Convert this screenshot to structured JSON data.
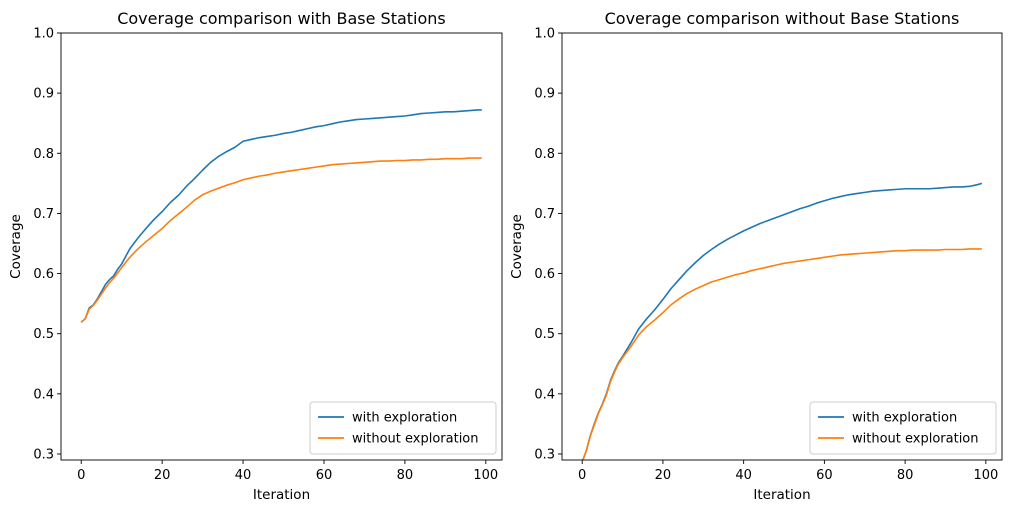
{
  "chart_data": [
    {
      "type": "line",
      "title": "Coverage comparison with Base Stations",
      "xlabel": "Iteration",
      "ylabel": "Coverage",
      "xlim": [
        -5,
        104
      ],
      "ylim": [
        0.29,
        1.0
      ],
      "xticks": [
        0,
        20,
        40,
        60,
        80,
        100
      ],
      "yticks": [
        0.3,
        0.4,
        0.5,
        0.6,
        0.7,
        0.8,
        0.9,
        1.0
      ],
      "grid": false,
      "legend": "lower right",
      "series": [
        {
          "name": "with exploration",
          "color": "#1f77b4",
          "points": [
            [
              0,
              0.519
            ],
            [
              1,
              0.525
            ],
            [
              2,
              0.543
            ],
            [
              3,
              0.548
            ],
            [
              4,
              0.558
            ],
            [
              5,
              0.57
            ],
            [
              6,
              0.582
            ],
            [
              7,
              0.59
            ],
            [
              8,
              0.596
            ],
            [
              9,
              0.607
            ],
            [
              10,
              0.616
            ],
            [
              12,
              0.641
            ],
            [
              14,
              0.659
            ],
            [
              16,
              0.675
            ],
            [
              18,
              0.69
            ],
            [
              20,
              0.703
            ],
            [
              22,
              0.718
            ],
            [
              24,
              0.73
            ],
            [
              26,
              0.745
            ],
            [
              28,
              0.758
            ],
            [
              30,
              0.772
            ],
            [
              32,
              0.785
            ],
            [
              34,
              0.795
            ],
            [
              36,
              0.803
            ],
            [
              38,
              0.81
            ],
            [
              40,
              0.82
            ],
            [
              42,
              0.823
            ],
            [
              44,
              0.826
            ],
            [
              46,
              0.828
            ],
            [
              48,
              0.83
            ],
            [
              50,
              0.833
            ],
            [
              52,
              0.835
            ],
            [
              54,
              0.838
            ],
            [
              56,
              0.841
            ],
            [
              58,
              0.844
            ],
            [
              60,
              0.846
            ],
            [
              62,
              0.849
            ],
            [
              64,
              0.852
            ],
            [
              66,
              0.854
            ],
            [
              68,
              0.856
            ],
            [
              70,
              0.857
            ],
            [
              72,
              0.858
            ],
            [
              74,
              0.859
            ],
            [
              76,
              0.86
            ],
            [
              78,
              0.861
            ],
            [
              80,
              0.862
            ],
            [
              82,
              0.864
            ],
            [
              84,
              0.866
            ],
            [
              86,
              0.867
            ],
            [
              88,
              0.868
            ],
            [
              90,
              0.869
            ],
            [
              92,
              0.869
            ],
            [
              94,
              0.87
            ],
            [
              96,
              0.871
            ],
            [
              98,
              0.872
            ],
            [
              99,
              0.872
            ]
          ]
        },
        {
          "name": "without exploration",
          "color": "#ff7f0e",
          "points": [
            [
              0,
              0.519
            ],
            [
              1,
              0.525
            ],
            [
              2,
              0.541
            ],
            [
              3,
              0.547
            ],
            [
              4,
              0.556
            ],
            [
              5,
              0.566
            ],
            [
              6,
              0.576
            ],
            [
              7,
              0.585
            ],
            [
              8,
              0.592
            ],
            [
              9,
              0.601
            ],
            [
              10,
              0.61
            ],
            [
              12,
              0.627
            ],
            [
              14,
              0.641
            ],
            [
              16,
              0.653
            ],
            [
              18,
              0.664
            ],
            [
              20,
              0.675
            ],
            [
              22,
              0.688
            ],
            [
              24,
              0.699
            ],
            [
              26,
              0.71
            ],
            [
              28,
              0.722
            ],
            [
              30,
              0.731
            ],
            [
              32,
              0.737
            ],
            [
              34,
              0.742
            ],
            [
              36,
              0.747
            ],
            [
              38,
              0.751
            ],
            [
              40,
              0.756
            ],
            [
              42,
              0.759
            ],
            [
              44,
              0.762
            ],
            [
              46,
              0.764
            ],
            [
              48,
              0.767
            ],
            [
              50,
              0.769
            ],
            [
              52,
              0.771
            ],
            [
              54,
              0.773
            ],
            [
              56,
              0.775
            ],
            [
              58,
              0.777
            ],
            [
              60,
              0.779
            ],
            [
              62,
              0.781
            ],
            [
              64,
              0.782
            ],
            [
              66,
              0.783
            ],
            [
              68,
              0.784
            ],
            [
              70,
              0.785
            ],
            [
              72,
              0.786
            ],
            [
              74,
              0.787
            ],
            [
              76,
              0.787
            ],
            [
              78,
              0.788
            ],
            [
              80,
              0.788
            ],
            [
              82,
              0.789
            ],
            [
              84,
              0.789
            ],
            [
              86,
              0.79
            ],
            [
              88,
              0.79
            ],
            [
              90,
              0.791
            ],
            [
              92,
              0.791
            ],
            [
              94,
              0.791
            ],
            [
              96,
              0.792
            ],
            [
              98,
              0.792
            ],
            [
              99,
              0.792
            ]
          ]
        }
      ]
    },
    {
      "type": "line",
      "title": "Coverage comparison without Base Stations",
      "xlabel": "Iteration",
      "ylabel": "Coverage",
      "xlim": [
        -5,
        104
      ],
      "ylim": [
        0.29,
        1.0
      ],
      "xticks": [
        0,
        20,
        40,
        60,
        80,
        100
      ],
      "yticks": [
        0.3,
        0.4,
        0.5,
        0.6,
        0.7,
        0.8,
        0.9,
        1.0
      ],
      "grid": false,
      "legend": "lower right",
      "series": [
        {
          "name": "with exploration",
          "color": "#1f77b4",
          "points": [
            [
              0,
              0.287
            ],
            [
              1,
              0.305
            ],
            [
              2,
              0.33
            ],
            [
              3,
              0.35
            ],
            [
              4,
              0.368
            ],
            [
              5,
              0.383
            ],
            [
              6,
              0.4
            ],
            [
              7,
              0.422
            ],
            [
              8,
              0.438
            ],
            [
              9,
              0.452
            ],
            [
              10,
              0.462
            ],
            [
              12,
              0.484
            ],
            [
              14,
              0.508
            ],
            [
              16,
              0.525
            ],
            [
              18,
              0.54
            ],
            [
              20,
              0.557
            ],
            [
              22,
              0.575
            ],
            [
              24,
              0.59
            ],
            [
              26,
              0.605
            ],
            [
              28,
              0.618
            ],
            [
              30,
              0.63
            ],
            [
              32,
              0.64
            ],
            [
              34,
              0.649
            ],
            [
              36,
              0.657
            ],
            [
              38,
              0.664
            ],
            [
              40,
              0.671
            ],
            [
              42,
              0.677
            ],
            [
              44,
              0.683
            ],
            [
              46,
              0.688
            ],
            [
              48,
              0.693
            ],
            [
              50,
              0.698
            ],
            [
              52,
              0.703
            ],
            [
              54,
              0.708
            ],
            [
              56,
              0.712
            ],
            [
              58,
              0.717
            ],
            [
              60,
              0.721
            ],
            [
              62,
              0.725
            ],
            [
              64,
              0.728
            ],
            [
              66,
              0.731
            ],
            [
              68,
              0.733
            ],
            [
              70,
              0.735
            ],
            [
              72,
              0.737
            ],
            [
              74,
              0.738
            ],
            [
              76,
              0.739
            ],
            [
              78,
              0.74
            ],
            [
              80,
              0.741
            ],
            [
              82,
              0.741
            ],
            [
              84,
              0.741
            ],
            [
              86,
              0.741
            ],
            [
              88,
              0.742
            ],
            [
              90,
              0.743
            ],
            [
              92,
              0.744
            ],
            [
              94,
              0.744
            ],
            [
              96,
              0.745
            ],
            [
              98,
              0.748
            ],
            [
              99,
              0.75
            ]
          ]
        },
        {
          "name": "without exploration",
          "color": "#ff7f0e",
          "points": [
            [
              0,
              0.287
            ],
            [
              1,
              0.305
            ],
            [
              2,
              0.33
            ],
            [
              3,
              0.348
            ],
            [
              4,
              0.367
            ],
            [
              5,
              0.382
            ],
            [
              6,
              0.398
            ],
            [
              7,
              0.42
            ],
            [
              8,
              0.436
            ],
            [
              9,
              0.45
            ],
            [
              10,
              0.46
            ],
            [
              12,
              0.478
            ],
            [
              14,
              0.498
            ],
            [
              16,
              0.512
            ],
            [
              18,
              0.523
            ],
            [
              20,
              0.535
            ],
            [
              22,
              0.548
            ],
            [
              24,
              0.558
            ],
            [
              26,
              0.567
            ],
            [
              28,
              0.574
            ],
            [
              30,
              0.58
            ],
            [
              32,
              0.586
            ],
            [
              34,
              0.59
            ],
            [
              36,
              0.594
            ],
            [
              38,
              0.598
            ],
            [
              40,
              0.601
            ],
            [
              42,
              0.605
            ],
            [
              44,
              0.608
            ],
            [
              46,
              0.611
            ],
            [
              48,
              0.614
            ],
            [
              50,
              0.617
            ],
            [
              52,
              0.619
            ],
            [
              54,
              0.621
            ],
            [
              56,
              0.623
            ],
            [
              58,
              0.625
            ],
            [
              60,
              0.627
            ],
            [
              62,
              0.629
            ],
            [
              64,
              0.631
            ],
            [
              66,
              0.632
            ],
            [
              68,
              0.633
            ],
            [
              70,
              0.634
            ],
            [
              72,
              0.635
            ],
            [
              74,
              0.636
            ],
            [
              76,
              0.637
            ],
            [
              78,
              0.638
            ],
            [
              80,
              0.638
            ],
            [
              82,
              0.639
            ],
            [
              84,
              0.639
            ],
            [
              86,
              0.639
            ],
            [
              88,
              0.639
            ],
            [
              90,
              0.64
            ],
            [
              92,
              0.64
            ],
            [
              94,
              0.64
            ],
            [
              96,
              0.641
            ],
            [
              98,
              0.641
            ],
            [
              99,
              0.641
            ]
          ]
        }
      ]
    }
  ]
}
